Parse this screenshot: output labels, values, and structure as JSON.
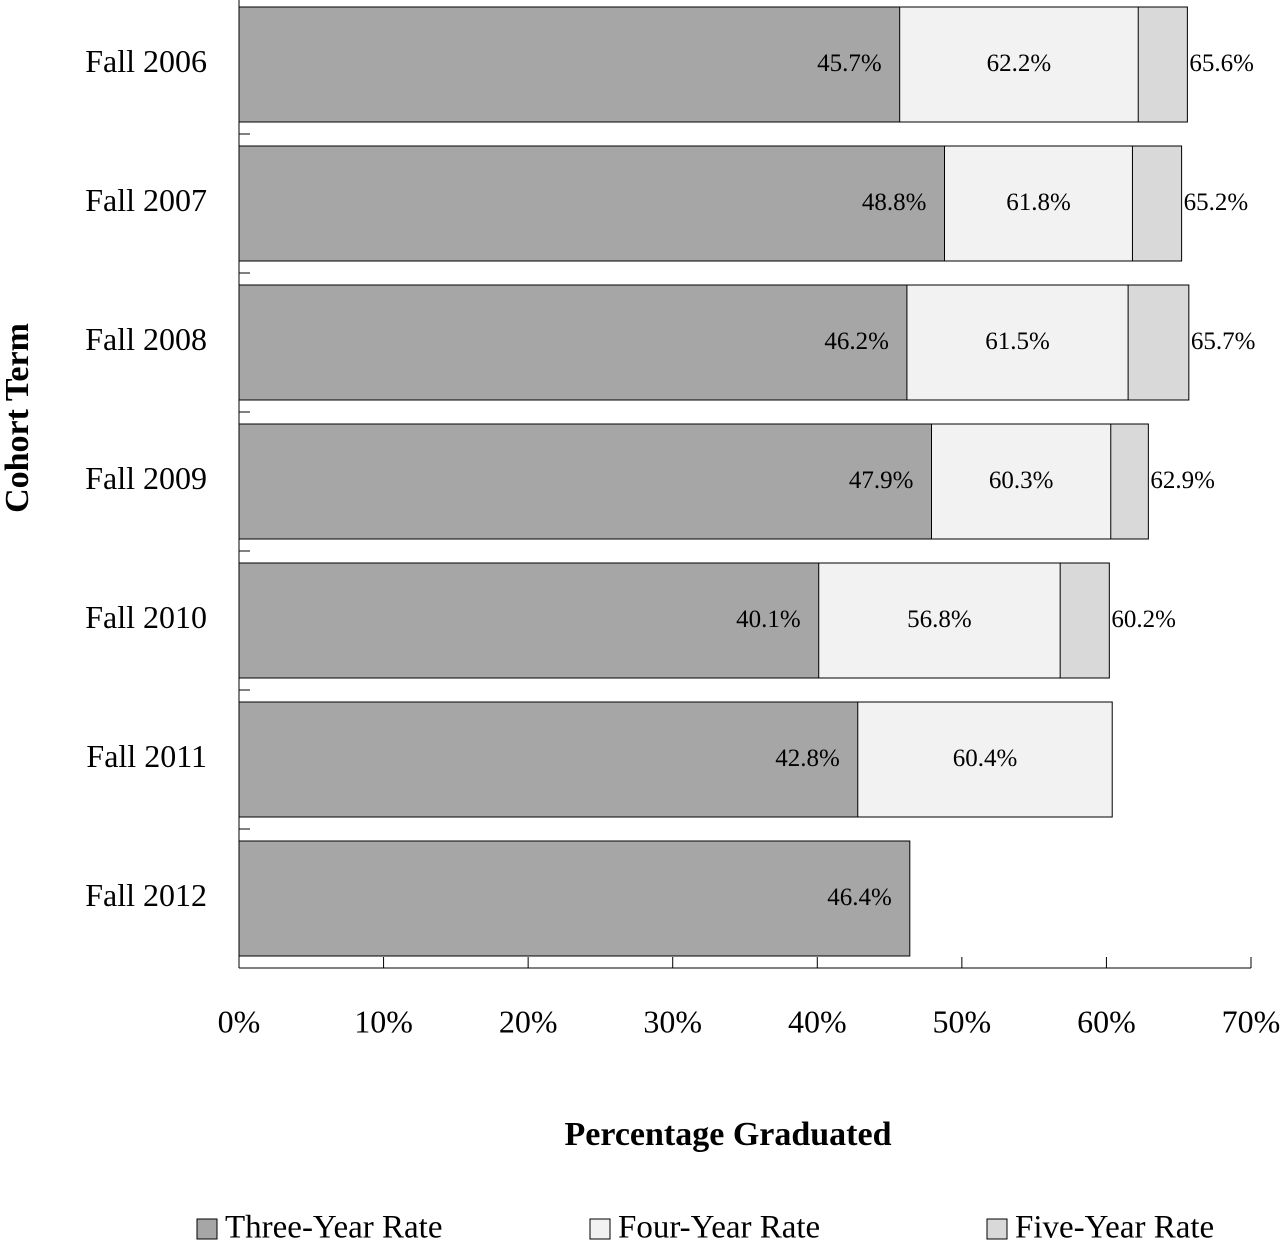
{
  "chart_data": {
    "type": "bar",
    "orientation": "horizontal",
    "overlap": true,
    "xlabel": "Percentage Graduated",
    "ylabel": "Cohort Term",
    "categories": [
      "Fall 2006",
      "Fall 2007",
      "Fall 2008",
      "Fall 2009",
      "Fall 2010",
      "Fall 2011",
      "Fall 2012"
    ],
    "series": [
      {
        "name": "Three-Year Rate",
        "color": "#a6a6a6",
        "values": [
          45.7,
          48.8,
          46.2,
          47.9,
          40.1,
          42.8,
          46.4
        ],
        "value_labels": [
          "45.7%",
          "48.8%",
          "46.2%",
          "47.9%",
          "40.1%",
          "42.8%",
          "46.4%"
        ]
      },
      {
        "name": "Four-Year Rate",
        "color": "#f2f2f2",
        "values": [
          62.2,
          61.8,
          61.5,
          60.3,
          56.8,
          60.4,
          null
        ],
        "value_labels": [
          "62.2%",
          "61.8%",
          "61.5%",
          "60.3%",
          "56.8%",
          "60.4%",
          null
        ]
      },
      {
        "name": "Five-Year Rate",
        "color": "#d9d9d9",
        "values": [
          65.6,
          65.2,
          65.7,
          62.9,
          60.2,
          null,
          null
        ],
        "value_labels": [
          "65.6%",
          "65.2%",
          "65.7%",
          "62.9%",
          "60.2%",
          null,
          null
        ]
      }
    ],
    "xlim": [
      0,
      70
    ],
    "xticks": [
      {
        "value": 0,
        "label": "0%"
      },
      {
        "value": 10,
        "label": "10%"
      },
      {
        "value": 20,
        "label": "20%"
      },
      {
        "value": 30,
        "label": "30%"
      },
      {
        "value": 40,
        "label": "40%"
      },
      {
        "value": 50,
        "label": "50%"
      },
      {
        "value": 60,
        "label": "60%"
      },
      {
        "value": 70,
        "label": "70%"
      }
    ],
    "grid": false,
    "legend": "bottom"
  }
}
